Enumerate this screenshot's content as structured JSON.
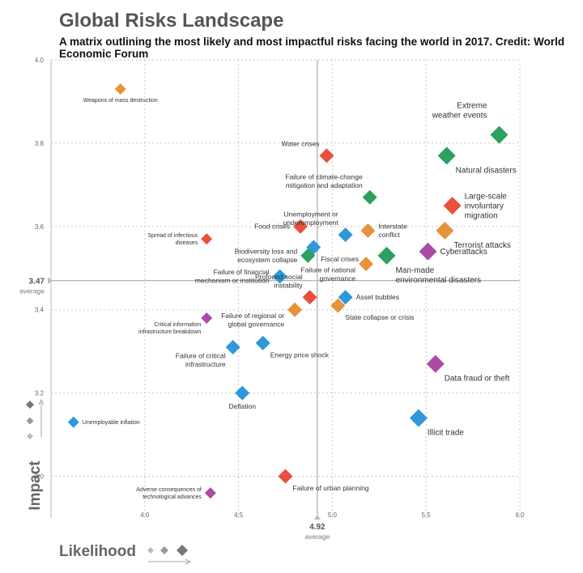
{
  "header": {
    "title": "Global Risks Landscape",
    "subtitle": "A matrix outlining the most likely and most impactful risks facing the world in 2017. Credit: World Economic Forum"
  },
  "chart_data": {
    "type": "scatter",
    "title": "Global Risks Landscape",
    "xlabel": "Likelihood",
    "ylabel": "Impact",
    "xlim": [
      3.5,
      6.0
    ],
    "ylim": [
      2.9,
      4.0
    ],
    "x_ticks": [
      "4.0",
      "4.5",
      "5.0",
      "5.5",
      "6.0"
    ],
    "y_ticks": [
      "3.0",
      "3.2",
      "3.4",
      "3.6",
      "3.8",
      "4.0"
    ],
    "grid": true,
    "average_x": {
      "value": 4.92,
      "label": "4.92",
      "sublabel": "average"
    },
    "average_y": {
      "value": 3.47,
      "label": "3.47",
      "sublabel": "average"
    },
    "colors": {
      "environmental": "#1a9850",
      "societal": "#e8412c",
      "economic": "#1c8fd6",
      "geopolitical": "#e58a2a",
      "technological": "#a53c9e"
    },
    "points": [
      {
        "label": "Weapons of mass destruction",
        "x": 3.87,
        "y": 3.93,
        "cat": "geopolitical",
        "size": 7,
        "color": "#e58a2a",
        "anchor": "below"
      },
      {
        "label": "Extreme\nweather events",
        "x": 5.89,
        "y": 3.82,
        "cat": "environmental",
        "size": 11,
        "color": "#1a9850",
        "anchor": "above-left"
      },
      {
        "label": "Natural disasters",
        "x": 5.61,
        "y": 3.77,
        "cat": "environmental",
        "size": 11,
        "color": "#1a9850",
        "anchor": "below-right"
      },
      {
        "label": "Water crises",
        "x": 4.97,
        "y": 3.77,
        "cat": "societal",
        "size": 9,
        "color": "#e8412c",
        "anchor": "upper-left"
      },
      {
        "label": "Failure of climate-change\nmitigation and adaptation",
        "x": 5.2,
        "y": 3.67,
        "cat": "environmental",
        "size": 9,
        "color": "#1a9850",
        "anchor": "upper-left"
      },
      {
        "label": "Large-scale\ninvoluntary\nmigration",
        "x": 5.64,
        "y": 3.65,
        "cat": "societal",
        "size": 11,
        "color": "#e8412c",
        "anchor": "right"
      },
      {
        "label": "Spread of infectious\ndiseases",
        "x": 4.33,
        "y": 3.57,
        "cat": "societal",
        "size": 7,
        "color": "#e8412c",
        "anchor": "left"
      },
      {
        "label": "Food crises",
        "x": 4.83,
        "y": 3.6,
        "cat": "societal",
        "size": 9,
        "color": "#e8412c",
        "anchor": "left"
      },
      {
        "label": "Unemployment or\nunderemployment",
        "x": 5.07,
        "y": 3.58,
        "cat": "economic",
        "size": 9,
        "color": "#1c8fd6",
        "anchor": "upper-left"
      },
      {
        "label": "Interstate\nconflict",
        "x": 5.19,
        "y": 3.59,
        "cat": "geopolitical",
        "size": 9,
        "color": "#e58a2a",
        "anchor": "right"
      },
      {
        "label": "Terrorist attacks",
        "x": 5.6,
        "y": 3.59,
        "cat": "geopolitical",
        "size": 11,
        "color": "#e58a2a",
        "anchor": "below-right"
      },
      {
        "label": "Biodiversity loss and\necosystem collapse",
        "x": 4.87,
        "y": 3.53,
        "cat": "environmental",
        "size": 9,
        "color": "#1a9850",
        "anchor": "left"
      },
      {
        "label": "Fiscal crises",
        "x": 4.9,
        "y": 3.55,
        "cat": "economic",
        "size": 9,
        "color": "#1c8fd6",
        "anchor": "below-right"
      },
      {
        "label": "Man-made\nenvironmental disasters",
        "x": 5.29,
        "y": 3.53,
        "cat": "environmental",
        "size": 11,
        "color": "#1a9850",
        "anchor": "below-right"
      },
      {
        "label": "Cyberattacks",
        "x": 5.51,
        "y": 3.54,
        "cat": "technological",
        "size": 11,
        "color": "#a53c9e",
        "anchor": "right"
      },
      {
        "label": "Failure of national\ngovernance",
        "x": 5.18,
        "y": 3.51,
        "cat": "geopolitical",
        "size": 9,
        "color": "#e58a2a",
        "anchor": "left-below"
      },
      {
        "label": "Failure of financial\nmechanism or institution",
        "x": 4.72,
        "y": 3.48,
        "cat": "economic",
        "size": 9,
        "color": "#1c8fd6",
        "anchor": "left"
      },
      {
        "label": "Profound social\ninstability",
        "x": 4.88,
        "y": 3.43,
        "cat": "societal",
        "size": 9,
        "color": "#e8412c",
        "anchor": "upper-left"
      },
      {
        "label": "Asset bubbles",
        "x": 5.07,
        "y": 3.43,
        "cat": "economic",
        "size": 9,
        "color": "#1c8fd6",
        "anchor": "right"
      },
      {
        "label": "Failure of regional or\nglobal governance",
        "x": 4.8,
        "y": 3.4,
        "cat": "geopolitical",
        "size": 9,
        "color": "#e58a2a",
        "anchor": "left-below"
      },
      {
        "label": "State collapse or crisis",
        "x": 5.03,
        "y": 3.41,
        "cat": "geopolitical",
        "size": 9,
        "color": "#e58a2a",
        "anchor": "below-right"
      },
      {
        "label": "Critical information\ninfrastructure breakdown",
        "x": 4.33,
        "y": 3.38,
        "cat": "technological",
        "size": 7,
        "color": "#a53c9e",
        "anchor": "below-left"
      },
      {
        "label": "Failure of critical\ninfrastructure",
        "x": 4.47,
        "y": 3.31,
        "cat": "economic",
        "size": 9,
        "color": "#1c8fd6",
        "anchor": "below-left"
      },
      {
        "label": "Energy price shock",
        "x": 4.63,
        "y": 3.32,
        "cat": "economic",
        "size": 9,
        "color": "#1c8fd6",
        "anchor": "below-right"
      },
      {
        "label": "Data fraud or theft",
        "x": 5.55,
        "y": 3.27,
        "cat": "technological",
        "size": 11,
        "color": "#a53c9e",
        "anchor": "below-right"
      },
      {
        "label": "Deflation",
        "x": 4.52,
        "y": 3.2,
        "cat": "economic",
        "size": 9,
        "color": "#1c8fd6",
        "anchor": "below"
      },
      {
        "label": "Illicit trade",
        "x": 5.46,
        "y": 3.14,
        "cat": "economic",
        "size": 11,
        "color": "#1c8fd6",
        "anchor": "below-right"
      },
      {
        "label": "Unemployable inflation",
        "x": 3.62,
        "y": 3.13,
        "cat": "economic",
        "size": 7,
        "color": "#1c8fd6",
        "anchor": "right"
      },
      {
        "label": "Failure of urban planning",
        "x": 4.75,
        "y": 3.0,
        "cat": "societal",
        "size": 9,
        "color": "#e8412c",
        "anchor": "below-right"
      },
      {
        "label": "Adverse consequences of\ntechnological advances",
        "x": 4.35,
        "y": 2.96,
        "cat": "technological",
        "size": 7,
        "color": "#a53c9e",
        "anchor": "left"
      }
    ]
  }
}
